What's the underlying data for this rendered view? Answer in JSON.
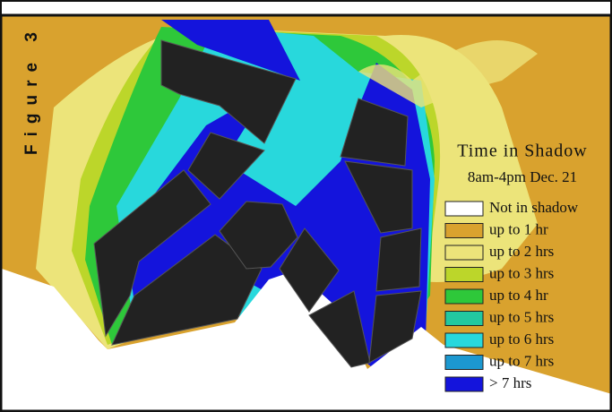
{
  "figure_label": "Figure 3",
  "legend": {
    "title": "Time in Shadow",
    "subtitle": "8am-4pm Dec. 21",
    "items": [
      {
        "label": "Not in shadow",
        "color": "#ffffff"
      },
      {
        "label": "up to 1 hr",
        "color": "#d9a22e"
      },
      {
        "label": "up to 2 hrs",
        "color": "#ece47a"
      },
      {
        "label": "up to 3 hrs",
        "color": "#bcd62a"
      },
      {
        "label": "up to 4 hr",
        "color": "#2ec83a"
      },
      {
        "label": "up to 5 hrs",
        "color": "#22c8a0"
      },
      {
        "label": "up to 6 hrs",
        "color": "#28d8dc"
      },
      {
        "label": "up to 7 hrs",
        "color": "#1c98d0"
      },
      {
        "label": "> 7 hrs",
        "color": "#1414dc"
      }
    ]
  }
}
